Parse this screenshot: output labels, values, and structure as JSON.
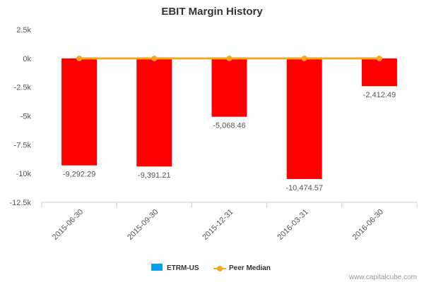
{
  "chart_data": {
    "type": "bar",
    "title": "EBIT Margin History",
    "categories": [
      "2015-06-30",
      "2015-09-30",
      "2015-12-31",
      "2016-03-31",
      "2016-06-30"
    ],
    "series": [
      {
        "name": "ETRM-US",
        "type": "bar",
        "color": "#ff0000",
        "legend_color": "#0e9ee8",
        "values": [
          -9292.29,
          -9391.21,
          -5068.46,
          -10474.57,
          -2412.49
        ],
        "labels": [
          "-9,292.29",
          "-9,391.21",
          "-5,068.46",
          "-10,474.57",
          "-2,412.49"
        ]
      },
      {
        "name": "Peer Median",
        "type": "line",
        "color": "#f5a623",
        "values": [
          0,
          0,
          0,
          0,
          0
        ]
      }
    ],
    "yticks": [
      2500,
      0,
      -2500,
      -5000,
      -7500,
      -10000,
      -12500
    ],
    "ytick_labels": [
      "2.5k",
      "0k",
      "-2.5k",
      "-5k",
      "-7.5k",
      "-10k",
      "-12.5k"
    ],
    "ylim": [
      -12500,
      2500
    ],
    "xlabel": "",
    "ylabel": "",
    "legend_position": "bottom-center",
    "grid": false
  },
  "credit": "www.capitalcube.com"
}
